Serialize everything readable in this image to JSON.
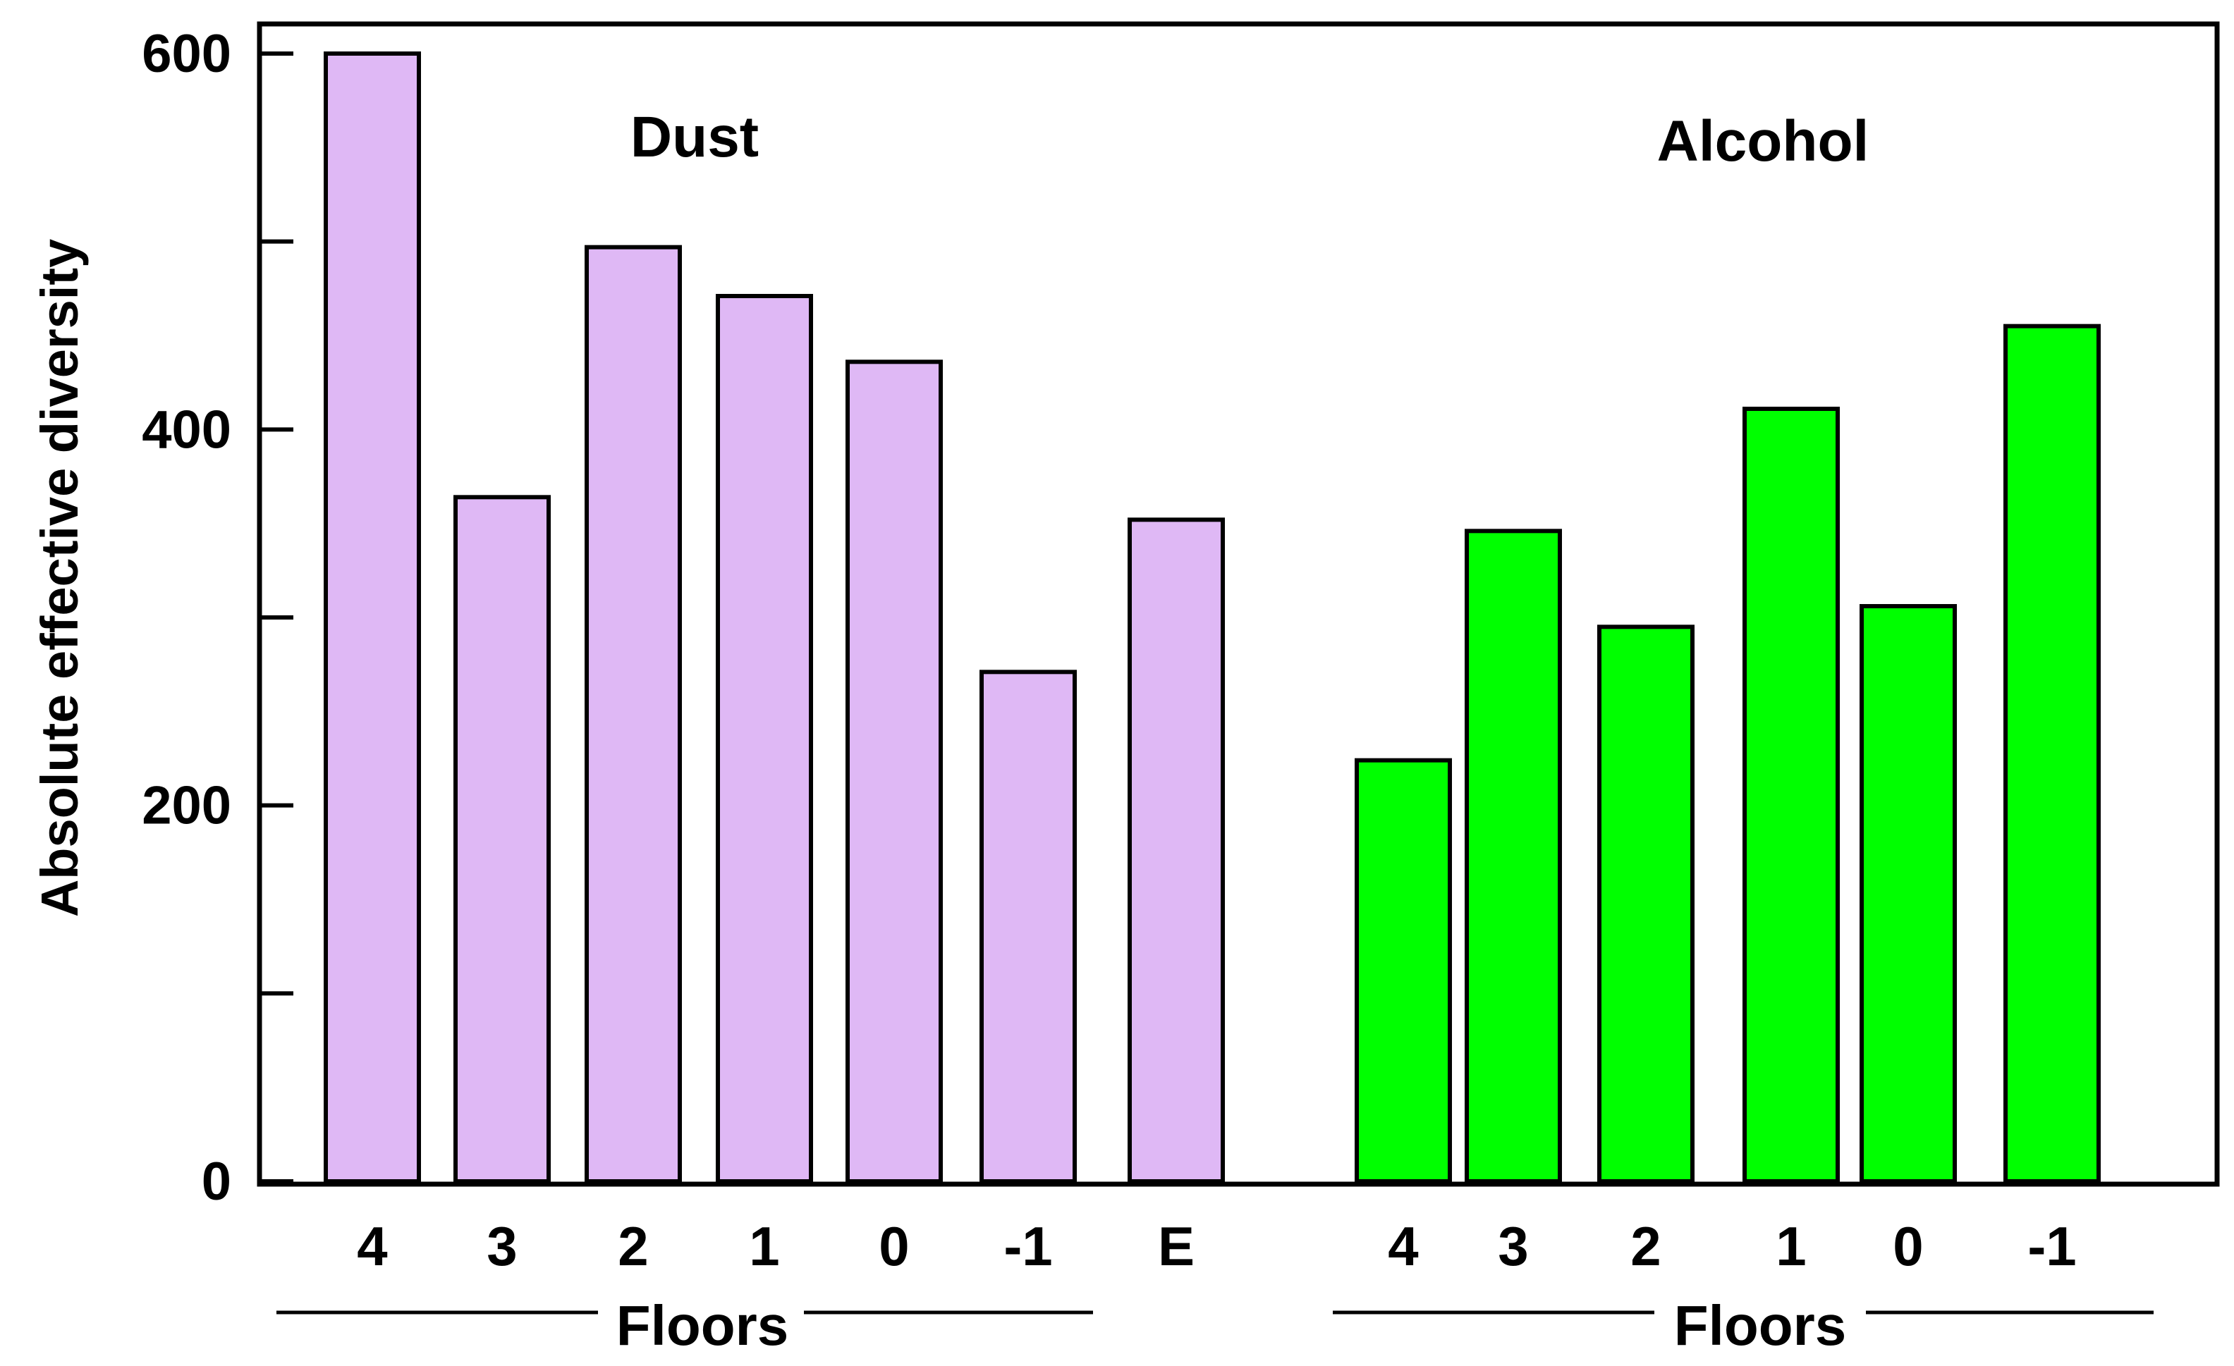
{
  "chart_data": {
    "type": "bar",
    "ylabel": "Absolute effective diversity",
    "ylim": [
      0,
      620
    ],
    "yticks": [
      0,
      100,
      200,
      300,
      400,
      500,
      600
    ],
    "ytick_labels": [
      "0",
      "",
      "200",
      "",
      "400",
      "",
      "600"
    ],
    "grid": false,
    "legend": "none",
    "groups": [
      {
        "name": "Dust",
        "xlabel": "Floors",
        "color": "#dfb8f5",
        "categories": [
          "4",
          "3",
          "2",
          "1",
          "0",
          "-1",
          "E"
        ],
        "values": [
          600,
          364,
          497,
          471,
          436,
          271,
          352
        ]
      },
      {
        "name": "Alcohol",
        "xlabel": "Floors",
        "color": "#00ff00",
        "categories": [
          "4",
          "3",
          "2",
          "1",
          "0",
          "-1"
        ],
        "values": [
          224,
          346,
          295,
          411,
          306,
          455
        ]
      }
    ]
  }
}
